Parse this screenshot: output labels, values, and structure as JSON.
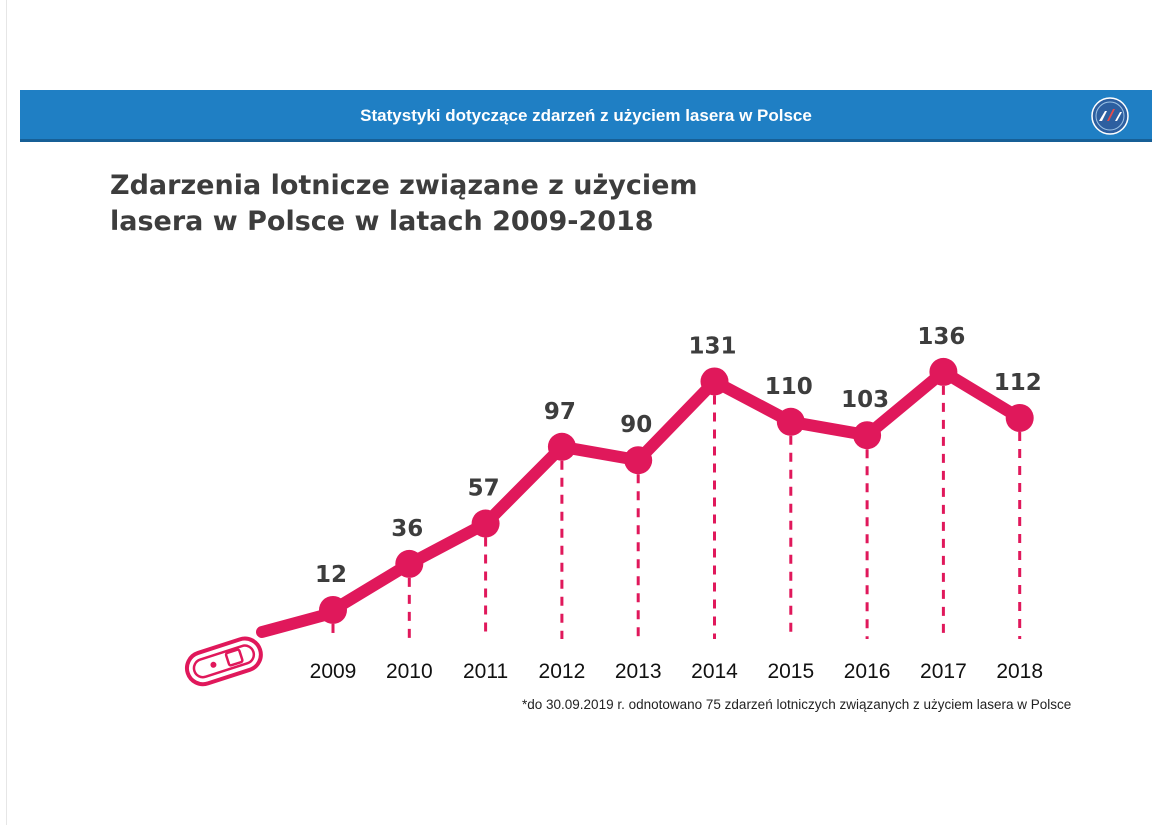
{
  "header": {
    "banner_title": "Statystyki dotyczące zdarzeń z użyciem lasera w Polsce",
    "logo_icon": "aviation-authority-logo-icon"
  },
  "chart_data": {
    "type": "line",
    "title_line1": "Zdarzenia lotnicze związane z użyciem",
    "title_line2": "lasera w Polsce w latach 2009-2018",
    "categories": [
      "2009",
      "2010",
      "2011",
      "2012",
      "2013",
      "2014",
      "2015",
      "2016",
      "2017",
      "2018"
    ],
    "series": [
      {
        "values": [
          12,
          36,
          57,
          97,
          90,
          131,
          110,
          103,
          136,
          112
        ]
      }
    ],
    "xlabel": "",
    "ylabel": "",
    "grid": false,
    "y_axis_visible": false,
    "legend": "none",
    "decoration_icon": "laser-pointer-icon",
    "colors": {
      "line": "#e0185b",
      "banner": "#1f7fc4",
      "title": "#3d3d3d",
      "value_label": "#3d3d3d"
    }
  },
  "footnote": "*do 30.09.2019 r. odnotowano 75 zdarzeń lotniczych związanych z użyciem lasera w Polsce"
}
